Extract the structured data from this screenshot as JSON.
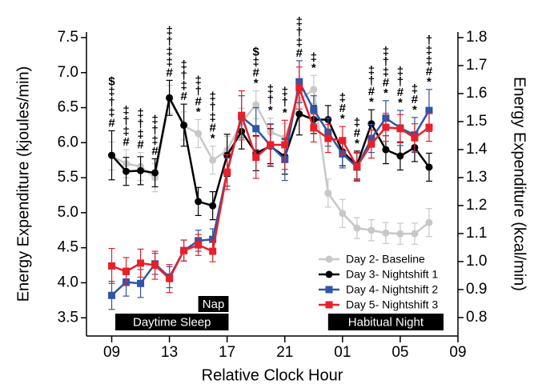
{
  "chart_data": {
    "type": "line",
    "xlabel": "Relative Clock Hour",
    "ylabel": "Energy Expenditure (kjoules/min)",
    "y2label": "Energy Expenditure (kcal/min)",
    "x": [
      9,
      10,
      11,
      12,
      13,
      14,
      15,
      16,
      17,
      18,
      19,
      20,
      21,
      22,
      23,
      24,
      25,
      26,
      27,
      28,
      29,
      30,
      31
    ],
    "xlim": [
      7.25,
      33
    ],
    "xticks": [
      {
        "value": 9,
        "label": "09"
      },
      13,
      17,
      21,
      {
        "value": 25,
        "label": "01"
      },
      {
        "value": 29,
        "label": "05"
      },
      {
        "value": 33,
        "label": "09"
      }
    ],
    "ylim": [
      3.24,
      7.58
    ],
    "yticks": [
      {
        "value": 3.5,
        "label": "3.5"
      },
      {
        "value": 4,
        "label": "4.0"
      },
      {
        "value": 4.5,
        "label": "4.5"
      },
      {
        "value": 5,
        "label": "5.0"
      },
      {
        "value": 5.5,
        "label": "5.5"
      },
      {
        "value": 6,
        "label": "6.0"
      },
      {
        "value": 6.5,
        "label": "6.5"
      },
      {
        "value": 7,
        "label": "7.0"
      },
      {
        "value": 7.5,
        "label": "7.5"
      }
    ],
    "y2lim": [
      0.734,
      1.82
    ],
    "y2ticks": [
      0.8,
      0.9,
      {
        "value": 1,
        "label": "1.0"
      },
      1.1,
      1.2,
      1.3,
      1.4,
      1.5,
      1.6,
      1.7,
      1.8
    ],
    "legend": "lower right",
    "series": [
      {
        "name": "Day 2- Baseline",
        "color": "#c8c8c8",
        "marker": "circle",
        "values": [
          5.81,
          5.7,
          5.66,
          5.5,
          6.62,
          6.24,
          6.13,
          5.75,
          5.89,
          6.29,
          6.54,
          6.15,
          6.07,
          6.61,
          6.76,
          5.28,
          4.99,
          4.78,
          4.75,
          4.71,
          4.7,
          4.7,
          4.86
        ],
        "errors": [
          0.2,
          0.2,
          0.2,
          0.2,
          0.2,
          0.2,
          0.2,
          0.2,
          0.2,
          0.2,
          0.2,
          0.2,
          0.2,
          0.2,
          0.2,
          0.2,
          0.2,
          0.15,
          0.15,
          0.15,
          0.15,
          0.15,
          0.2
        ]
      },
      {
        "name": "Day 3- Nightshift 1",
        "color": "#000000",
        "marker": "circle",
        "values": [
          5.82,
          5.59,
          5.6,
          5.57,
          6.64,
          6.25,
          5.16,
          5.1,
          5.82,
          6.16,
          5.85,
          5.95,
          5.8,
          6.41,
          6.33,
          6.33,
          5.87,
          5.68,
          6.27,
          5.9,
          5.81,
          5.93,
          5.65
        ],
        "errors": [
          0.35,
          0.2,
          0.2,
          0.2,
          0.25,
          0.3,
          0.2,
          0.2,
          0.3,
          0.25,
          0.25,
          0.25,
          0.25,
          0.3,
          0.2,
          0.2,
          0.2,
          0.2,
          0.2,
          0.2,
          0.2,
          0.2,
          0.2
        ]
      },
      {
        "name": "Day 4- Nightshift 2",
        "color": "#2f55a6",
        "marker": "square",
        "values": [
          3.82,
          4.01,
          3.99,
          4.27,
          4.08,
          4.46,
          4.6,
          4.62,
          5.58,
          6.37,
          6.2,
          5.96,
          5.76,
          6.87,
          6.47,
          6.15,
          5.84,
          5.65,
          6.06,
          6.35,
          6.21,
          6.11,
          6.46
        ],
        "errors": [
          0.2,
          0.2,
          0.2,
          0.15,
          0.15,
          0.15,
          0.15,
          0.15,
          0.2,
          0.3,
          0.3,
          0.3,
          0.3,
          0.3,
          0.2,
          0.2,
          0.2,
          0.2,
          0.2,
          0.25,
          0.25,
          0.25,
          0.3
        ]
      },
      {
        "name": "Day 5- Nightshift 3",
        "color": "#e8202a",
        "marker": "square",
        "values": [
          4.24,
          4.16,
          4.28,
          4.25,
          4.06,
          4.46,
          4.54,
          4.45,
          5.58,
          6.39,
          5.79,
          5.97,
          5.97,
          6.78,
          6.21,
          6.06,
          6.03,
          5.66,
          5.98,
          6.22,
          6.2,
          6.07,
          6.22
        ],
        "errors": [
          0.25,
          0.2,
          0.2,
          0.2,
          0.2,
          0.15,
          0.15,
          0.15,
          0.25,
          0.35,
          0.3,
          0.3,
          0.35,
          0.3,
          0.2,
          0.2,
          0.2,
          0.2,
          0.2,
          0.2,
          0.2,
          0.2,
          0.2
        ]
      }
    ],
    "periods": [
      {
        "label": "Daytime Sleep",
        "start": 9.25,
        "end": 17.1
      },
      {
        "label": "Nap",
        "start": 15.0,
        "end": 17.1
      },
      {
        "label": "Habitual Night",
        "start": 24.0,
        "end": 32.0
      }
    ],
    "annotations": [
      {
        "x": 9,
        "lines": [
          "$",
          "‡",
          "†",
          "‡",
          "#"
        ]
      },
      {
        "x": 10,
        "lines": [
          "‡",
          "†",
          "‡",
          "#"
        ]
      },
      {
        "x": 11,
        "lines": [
          "‡",
          "†",
          "‡",
          "#"
        ]
      },
      {
        "x": 12,
        "lines": [
          "‡",
          "†",
          "‡",
          "#"
        ]
      },
      {
        "x": 13,
        "lines": [
          "‡",
          "†",
          "‡",
          "‡",
          "#"
        ]
      },
      {
        "x": 14,
        "lines": [
          "‡",
          "†",
          "‡",
          "#"
        ]
      },
      {
        "x": 15,
        "lines": [
          "‡",
          "†",
          "#",
          "*"
        ]
      },
      {
        "x": 16,
        "lines": [
          "‡",
          "†",
          "‡",
          "#",
          "*"
        ]
      },
      {
        "x": 19,
        "lines": [
          "$",
          "‡",
          "#",
          "*"
        ]
      },
      {
        "x": 20,
        "lines": [
          "‡",
          "†",
          "*"
        ]
      },
      {
        "x": 21,
        "lines": [
          "‡",
          "†",
          "*"
        ]
      },
      {
        "x": 22,
        "lines": [
          "‡",
          "†",
          "‡",
          "#"
        ]
      },
      {
        "x": 23,
        "lines": [
          "‡",
          "*"
        ]
      },
      {
        "x": 25,
        "lines": [
          "‡",
          "#",
          "*"
        ]
      },
      {
        "x": 26,
        "lines": [
          "‡",
          "#",
          "*"
        ]
      },
      {
        "x": 27,
        "lines": [
          "‡",
          "†",
          "#",
          "*"
        ]
      },
      {
        "x": 28,
        "lines": [
          "‡",
          "†",
          "‡",
          "#",
          "*"
        ]
      },
      {
        "x": 29,
        "lines": [
          "‡",
          "†",
          "#",
          "*"
        ]
      },
      {
        "x": 30,
        "lines": [
          "‡",
          "#",
          "*"
        ]
      },
      {
        "x": 31,
        "lines": [
          "†",
          "‡",
          "‡",
          "#",
          "*"
        ]
      }
    ]
  }
}
